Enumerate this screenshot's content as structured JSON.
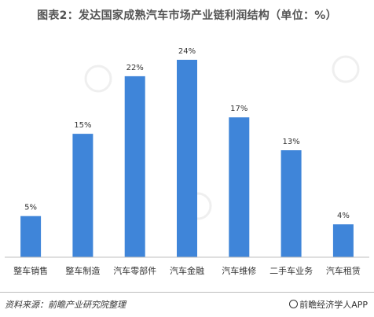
{
  "title": "图表2：发达国家成熟汽车市场产业链利润结构（单位：%）",
  "source": "资料来源：前瞻产业研究院整理",
  "credit": "前瞻经济学人APP",
  "colors": {
    "bar": "#3f85d9",
    "text": "#333333",
    "axis": "#bfbfbf"
  },
  "chart_data": {
    "type": "bar",
    "title": "图表2：发达国家成熟汽车市场产业链利润结构（单位：%）",
    "categories": [
      "整车销售",
      "整车制造",
      "汽车零部件",
      "汽车金融",
      "汽车维修",
      "二手车业务",
      "汽车租赁"
    ],
    "values": [
      5,
      15,
      22,
      24,
      17,
      13,
      4
    ],
    "data_labels": [
      "5%",
      "15%",
      "22%",
      "24%",
      "17%",
      "13%",
      "4%"
    ],
    "xlabel": "",
    "ylabel": "",
    "ylim": [
      0,
      24
    ],
    "grid": false,
    "legend": "none"
  }
}
